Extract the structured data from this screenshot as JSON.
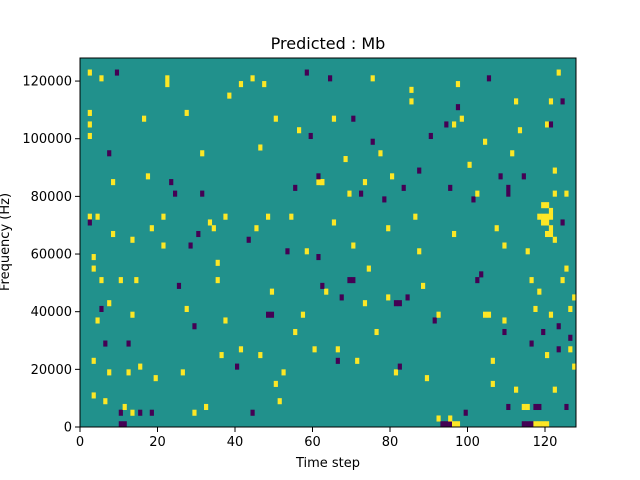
{
  "chart_data": {
    "type": "heatmap",
    "title": "Predicted : Mb",
    "xlabel": "Time step",
    "ylabel": "Frequency (Hz)",
    "xlim": [
      0,
      128
    ],
    "ylim": [
      0,
      128000
    ],
    "x_ticks": [
      "0",
      "20",
      "40",
      "60",
      "80",
      "100",
      "120"
    ],
    "x_tick_values": [
      0,
      20,
      40,
      60,
      80,
      100,
      120
    ],
    "y_ticks": [
      "0",
      "20000",
      "40000",
      "60000",
      "80000",
      "100000",
      "120000"
    ],
    "y_tick_values": [
      0,
      20000,
      40000,
      60000,
      80000,
      100000,
      120000
    ],
    "n_time_steps": 128,
    "n_freq_bins": 64,
    "freq_bin_width": 2000,
    "background_value": 0,
    "colormap": {
      "-1": "#440154",
      "0": "#21918c",
      "1": "#fde725"
    },
    "cells": [
      [
        2,
        61,
        1
      ],
      [
        2,
        54,
        1
      ],
      [
        2,
        52,
        1
      ],
      [
        2,
        50,
        1
      ],
      [
        2,
        36,
        1
      ],
      [
        2,
        35,
        -1
      ],
      [
        3,
        29,
        1
      ],
      [
        3,
        27,
        1
      ],
      [
        3,
        11,
        1
      ],
      [
        3,
        5,
        1
      ],
      [
        4,
        36,
        1
      ],
      [
        4,
        18,
        1
      ],
      [
        5,
        25,
        1
      ],
      [
        5,
        20,
        -1
      ],
      [
        5,
        60,
        1
      ],
      [
        6,
        14,
        -1
      ],
      [
        6,
        4,
        1
      ],
      [
        7,
        9,
        1
      ],
      [
        7,
        21,
        1
      ],
      [
        7,
        47,
        -1
      ],
      [
        8,
        42,
        1
      ],
      [
        8,
        33,
        1
      ],
      [
        9,
        61,
        -1
      ],
      [
        10,
        25,
        1
      ],
      [
        10,
        2,
        -1
      ],
      [
        11,
        3,
        1
      ],
      [
        12,
        14,
        -1
      ],
      [
        12,
        9,
        1
      ],
      [
        13,
        19,
        1
      ],
      [
        13,
        32,
        1
      ],
      [
        14,
        25,
        1
      ],
      [
        15,
        10,
        1
      ],
      [
        15,
        2,
        -1
      ],
      [
        16,
        53,
        1
      ],
      [
        17,
        43,
        1
      ],
      [
        18,
        2,
        -1
      ],
      [
        19,
        8,
        1
      ],
      [
        21,
        31,
        1
      ],
      [
        21,
        36,
        1
      ],
      [
        22,
        59,
        1
      ],
      [
        22,
        60,
        1
      ],
      [
        23,
        42,
        -1
      ],
      [
        24,
        40,
        -1
      ],
      [
        25,
        24,
        -1
      ],
      [
        26,
        9,
        1
      ],
      [
        27,
        20,
        1
      ],
      [
        27,
        54,
        1
      ],
      [
        28,
        31,
        -1
      ],
      [
        29,
        17,
        -1
      ],
      [
        30,
        33,
        -1
      ],
      [
        31,
        40,
        -1
      ],
      [
        31,
        47,
        1
      ],
      [
        32,
        3,
        1
      ],
      [
        33,
        35,
        1
      ],
      [
        34,
        34,
        1
      ],
      [
        35,
        25,
        1
      ],
      [
        36,
        12,
        1
      ],
      [
        37,
        18,
        1
      ],
      [
        37,
        36,
        1
      ],
      [
        38,
        57,
        1
      ],
      [
        40,
        10,
        -1
      ],
      [
        41,
        59,
        1
      ],
      [
        43,
        32,
        -1
      ],
      [
        44,
        2,
        -1
      ],
      [
        45,
        34,
        1
      ],
      [
        46,
        48,
        1
      ],
      [
        47,
        59,
        1
      ],
      [
        48,
        36,
        1
      ],
      [
        49,
        23,
        1
      ],
      [
        50,
        7,
        1
      ],
      [
        50,
        53,
        1
      ],
      [
        51,
        4,
        1
      ],
      [
        52,
        9,
        1
      ],
      [
        53,
        30,
        -1
      ],
      [
        54,
        36,
        1
      ],
      [
        55,
        41,
        -1
      ],
      [
        56,
        51,
        1
      ],
      [
        57,
        19,
        1
      ],
      [
        58,
        30,
        1
      ],
      [
        59,
        50,
        -1
      ],
      [
        60,
        13,
        1
      ],
      [
        61,
        29,
        -1
      ],
      [
        62,
        42,
        1
      ],
      [
        63,
        23,
        1
      ],
      [
        64,
        60,
        -1
      ],
      [
        65,
        53,
        1
      ],
      [
        66,
        13,
        1
      ],
      [
        67,
        22,
        -1
      ],
      [
        68,
        46,
        1
      ],
      [
        69,
        40,
        1
      ],
      [
        70,
        53,
        -1
      ],
      [
        71,
        11,
        1
      ],
      [
        72,
        40,
        -1
      ],
      [
        73,
        42,
        1
      ],
      [
        74,
        27,
        1
      ],
      [
        75,
        49,
        -1
      ],
      [
        76,
        16,
        1
      ],
      [
        77,
        47,
        1
      ],
      [
        78,
        39,
        -1
      ],
      [
        79,
        22,
        1
      ],
      [
        80,
        43,
        1
      ],
      [
        81,
        9,
        1
      ],
      [
        82,
        10,
        -1
      ],
      [
        83,
        41,
        -1
      ],
      [
        84,
        22,
        -1
      ],
      [
        85,
        56,
        1
      ],
      [
        86,
        36,
        1
      ],
      [
        87,
        44,
        -1
      ],
      [
        88,
        24,
        1
      ],
      [
        89,
        8,
        1
      ],
      [
        90,
        50,
        -1
      ],
      [
        91,
        18,
        -1
      ],
      [
        92,
        19,
        1
      ],
      [
        94,
        52,
        -1
      ],
      [
        95,
        41,
        -1
      ],
      [
        96,
        33,
        1
      ],
      [
        97,
        59,
        1
      ],
      [
        98,
        53,
        1
      ],
      [
        99,
        2,
        -1
      ],
      [
        100,
        45,
        1
      ],
      [
        101,
        39,
        -1
      ],
      [
        102,
        40,
        1
      ],
      [
        103,
        26,
        -1
      ],
      [
        104,
        49,
        1
      ],
      [
        105,
        60,
        -1
      ],
      [
        106,
        11,
        1
      ],
      [
        107,
        34,
        1
      ],
      [
        108,
        43,
        -1
      ],
      [
        109,
        18,
        1
      ],
      [
        110,
        40,
        -1
      ],
      [
        111,
        47,
        1
      ],
      [
        112,
        56,
        1
      ],
      [
        113,
        51,
        1
      ],
      [
        114,
        43,
        -1
      ],
      [
        115,
        30,
        1
      ],
      [
        116,
        14,
        -1
      ],
      [
        117,
        20,
        1
      ],
      [
        118,
        23,
        1
      ],
      [
        119,
        35,
        1
      ],
      [
        120,
        52,
        1
      ],
      [
        121,
        56,
        1
      ],
      [
        122,
        6,
        1
      ],
      [
        123,
        61,
        1
      ],
      [
        124,
        35,
        -1
      ],
      [
        125,
        27,
        1
      ],
      [
        126,
        13,
        1
      ],
      [
        127,
        10,
        1
      ],
      [
        44,
        60,
        1
      ],
      [
        58,
        61,
        -1
      ],
      [
        75,
        60,
        1
      ],
      [
        85,
        58,
        1
      ],
      [
        96,
        52,
        1
      ],
      [
        109,
        31,
        1
      ],
      [
        110,
        41,
        -1
      ],
      [
        121,
        52,
        -1
      ],
      [
        122,
        44,
        1
      ],
      [
        123,
        13,
        -1
      ],
      [
        124,
        56,
        -1
      ],
      [
        125,
        40,
        1
      ],
      [
        126,
        15,
        -1
      ],
      [
        127,
        22,
        1
      ],
      [
        13,
        2,
        1
      ],
      [
        18,
        34,
        1
      ],
      [
        29,
        2,
        1
      ],
      [
        35,
        28,
        1
      ],
      [
        41,
        13,
        1
      ],
      [
        46,
        12,
        1
      ],
      [
        55,
        16,
        1
      ],
      [
        62,
        24,
        -1
      ],
      [
        65,
        35,
        1
      ],
      [
        66,
        11,
        -1
      ],
      [
        70,
        31,
        1
      ],
      [
        73,
        21,
        1
      ],
      [
        79,
        34,
        1
      ],
      [
        87,
        30,
        1
      ],
      [
        92,
        1,
        1
      ],
      [
        97,
        55,
        -1
      ],
      [
        102,
        25,
        -1
      ],
      [
        106,
        7,
        1
      ],
      [
        109,
        16,
        -1
      ],
      [
        112,
        6,
        1
      ],
      [
        114,
        3,
        1
      ],
      [
        116,
        25,
        1
      ],
      [
        118,
        36,
        1
      ],
      [
        119,
        16,
        -1
      ],
      [
        120,
        12,
        1
      ],
      [
        121,
        19,
        1
      ],
      [
        122,
        32,
        1
      ],
      [
        123,
        17,
        -1
      ],
      [
        124,
        25,
        1
      ],
      [
        125,
        3,
        -1
      ],
      [
        126,
        20,
        1
      ]
    ],
    "block_cells": [
      [
        10,
        0,
        -1
      ],
      [
        11,
        0,
        -1
      ],
      [
        48,
        19,
        -1
      ],
      [
        49,
        19,
        -1
      ],
      [
        61,
        42,
        1
      ],
      [
        62,
        42,
        1
      ],
      [
        61,
        43,
        -1
      ],
      [
        69,
        25,
        -1
      ],
      [
        70,
        25,
        -1
      ],
      [
        81,
        21,
        -1
      ],
      [
        82,
        21,
        -1
      ],
      [
        93,
        0,
        -1
      ],
      [
        94,
        0,
        -1
      ],
      [
        95,
        0,
        -1
      ],
      [
        96,
        0,
        1
      ],
      [
        97,
        0,
        1
      ],
      [
        104,
        19,
        1
      ],
      [
        105,
        19,
        1
      ],
      [
        114,
        0,
        -1
      ],
      [
        115,
        0,
        -1
      ],
      [
        116,
        0,
        -1
      ],
      [
        117,
        0,
        1
      ],
      [
        118,
        0,
        1
      ],
      [
        119,
        0,
        1
      ],
      [
        120,
        0,
        1
      ],
      [
        119,
        36,
        1
      ],
      [
        120,
        36,
        1
      ],
      [
        121,
        36,
        1
      ],
      [
        119,
        35,
        1
      ],
      [
        120,
        35,
        1
      ],
      [
        121,
        34,
        1
      ],
      [
        120,
        33,
        1
      ],
      [
        121,
        33,
        1
      ],
      [
        119,
        38,
        1
      ],
      [
        120,
        38,
        1
      ],
      [
        121,
        37,
        1
      ],
      [
        122,
        40,
        1
      ],
      [
        117,
        3,
        -1
      ],
      [
        118,
        3,
        -1
      ],
      [
        110,
        3,
        -1
      ],
      [
        115,
        3,
        1
      ],
      [
        95,
        1,
        1
      ]
    ]
  }
}
